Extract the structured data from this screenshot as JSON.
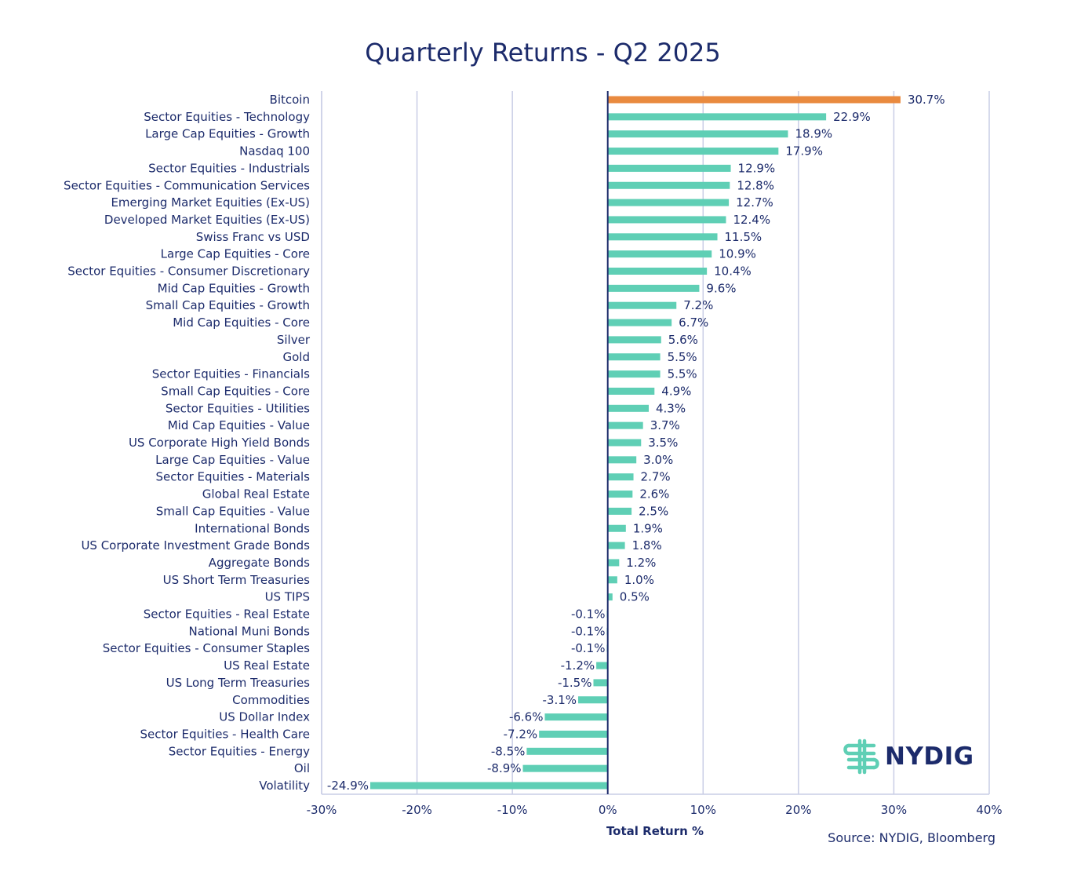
{
  "chart_data": {
    "type": "bar",
    "orientation": "horizontal",
    "title": "Quarterly Returns - Q2 2025",
    "xlabel": "Total Return %",
    "ylabel": "",
    "xlim": [
      -30,
      40
    ],
    "x_ticks": [
      "-30%",
      "-20%",
      "-10%",
      "0%",
      "10%",
      "20%",
      "30%",
      "40%"
    ],
    "x_tick_values": [
      -30,
      -20,
      -10,
      0,
      10,
      20,
      30,
      40
    ],
    "grid": "vertical",
    "highlight_color": "#e98a3f",
    "bar_color": "#5fcfb5",
    "categories": [
      "Bitcoin",
      "Sector Equities - Technology",
      "Large Cap Equities - Growth",
      "Nasdaq 100",
      "Sector Equities - Industrials",
      "Sector Equities - Communication Services",
      "Emerging Market Equities (Ex-US)",
      "Developed Market Equities (Ex-US)",
      "Swiss Franc vs USD",
      "Large Cap Equities - Core",
      "Sector Equities - Consumer Discretionary",
      "Mid Cap Equities - Growth",
      "Small Cap Equities - Growth",
      "Mid Cap Equities - Core",
      "Silver",
      "Gold",
      "Sector Equities - Financials",
      "Small Cap Equities - Core",
      "Sector Equities - Utilities",
      "Mid Cap Equities - Value",
      "US Corporate High Yield Bonds",
      "Large Cap Equities - Value",
      "Sector Equities - Materials",
      "Global Real Estate",
      "Small Cap Equities - Value",
      "International Bonds",
      "US Corporate Investment Grade Bonds",
      "Aggregate Bonds",
      "US Short Term Treasuries",
      "US TIPS",
      "Sector Equities - Real Estate",
      "National Muni Bonds",
      "Sector Equities - Consumer Staples",
      "US Real Estate",
      "US Long Term Treasuries",
      "Commodities",
      "US Dollar Index",
      "Sector Equities - Health Care",
      "Sector Equities - Energy",
      "Oil",
      "Volatility"
    ],
    "values": [
      30.7,
      22.9,
      18.9,
      17.9,
      12.9,
      12.8,
      12.7,
      12.4,
      11.5,
      10.9,
      10.4,
      9.6,
      7.2,
      6.7,
      5.6,
      5.5,
      5.5,
      4.9,
      4.3,
      3.7,
      3.5,
      3.0,
      2.7,
      2.6,
      2.5,
      1.9,
      1.8,
      1.2,
      1.0,
      0.5,
      -0.1,
      -0.1,
      -0.1,
      -1.2,
      -1.5,
      -3.1,
      -6.6,
      -7.2,
      -8.5,
      -8.9,
      -24.9
    ],
    "value_labels": [
      "30.7%",
      "22.9%",
      "18.9%",
      "17.9%",
      "12.9%",
      "12.8%",
      "12.7%",
      "12.4%",
      "11.5%",
      "10.9%",
      "10.4%",
      "9.6%",
      "7.2%",
      "6.7%",
      "5.6%",
      "5.5%",
      "5.5%",
      "4.9%",
      "4.3%",
      "3.7%",
      "3.5%",
      "3.0%",
      "2.7%",
      "2.6%",
      "2.5%",
      "1.9%",
      "1.8%",
      "1.2%",
      "1.0%",
      "0.5%",
      "-0.1%",
      "-0.1%",
      "-0.1%",
      "-1.2%",
      "-1.5%",
      "-3.1%",
      "-6.6%",
      "-7.2%",
      "-8.5%",
      "-8.9%",
      "-24.9%"
    ],
    "highlight_index": 0
  },
  "source": "Source: NYDIG, Bloomberg",
  "logo": {
    "text": "NYDIG",
    "icon": "nydig-logo-icon",
    "color": "#5fcfb5"
  }
}
